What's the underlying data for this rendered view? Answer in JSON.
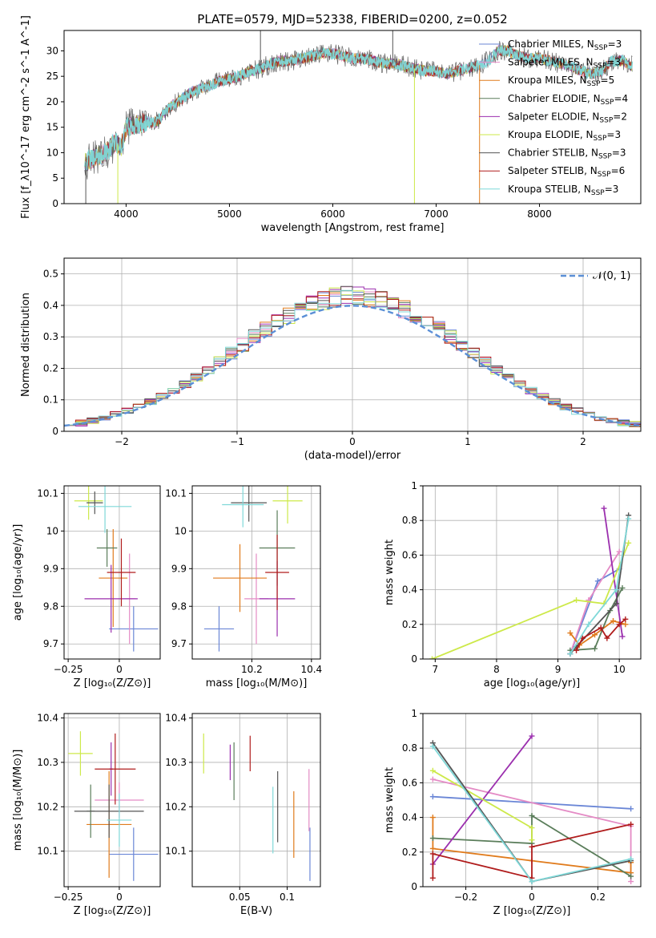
{
  "figure": {
    "title": "PLATE=0579, MJD=52338, FIBERID=0200, z=0.052"
  },
  "colors": {
    "chabrier_miles": "#6a86d6",
    "salpeter_miles": "#e48bc5",
    "kroupa_miles": "#e07b1c",
    "chabrier_elodie": "#5a7d5a",
    "salpeter_elodie": "#9b2fae",
    "kroupa_elodie": "#cde94a",
    "chabrier_stelib": "#555555",
    "salpeter_stelib": "#b01c1c",
    "kroupa_stelib": "#7fd8d8",
    "normal": "#5b8fd6",
    "grid": "#b0b0b0"
  },
  "chart_data": [
    {
      "id": "spectrum",
      "type": "line",
      "title": "PLATE=0579, MJD=52338, FIBERID=0200, z=0.052",
      "xlabel": "wavelength [Angstrom, rest frame]",
      "ylabel": "Flux [f_λ10^-17 erg cm^-2 s^-1 A^-1]",
      "xlim": [
        3400,
        8980
      ],
      "ylim": [
        0,
        34
      ],
      "xticks": [
        4000,
        5000,
        6000,
        7000,
        8000
      ],
      "yticks": [
        0,
        5,
        10,
        15,
        20,
        25,
        30
      ],
      "grid": false,
      "legend_position": "top-right",
      "continuum": {
        "x": [
          3600,
          3700,
          3800,
          3900,
          3950,
          4000,
          4100,
          4200,
          4300,
          4400,
          4500,
          4600,
          4700,
          4800,
          4900,
          5000,
          5100,
          5200,
          5300,
          5400,
          5500,
          5600,
          5700,
          5800,
          5900,
          6000,
          6100,
          6200,
          6300,
          6400,
          6500,
          6600,
          6700,
          6800,
          6900,
          7000,
          7100,
          7200,
          7300,
          7400,
          7500,
          7600,
          7700,
          7800,
          7900,
          8000,
          8100,
          8200,
          8300,
          8400,
          8500,
          8600,
          8700,
          8800,
          8900
        ],
        "y": [
          8,
          9,
          10,
          12,
          11,
          15,
          15.5,
          16,
          16,
          18.5,
          20,
          21.5,
          22.5,
          23,
          24,
          24.5,
          25,
          26,
          26.5,
          27.5,
          28,
          28,
          28.5,
          29,
          29.5,
          29.5,
          29,
          28.5,
          28.5,
          28,
          27.5,
          27.5,
          27,
          26.5,
          26,
          26,
          25.5,
          26,
          26.5,
          27,
          28,
          30,
          30,
          29,
          28.5,
          28.5,
          28,
          27.5,
          27,
          26,
          25.5,
          26,
          28,
          28,
          27
        ]
      },
      "series": [
        {
          "name": "Chabrier MILES, N_SSP=3",
          "label_main": "Chabrier MILES, N",
          "sub": "SSP",
          "label_tail": "=3",
          "color": "#6a86d6"
        },
        {
          "name": "Salpeter MILES, N_SSP=3",
          "label_main": "Salpeter MILES, N",
          "sub": "SSP",
          "label_tail": "=3",
          "color": "#e48bc5"
        },
        {
          "name": "Kroupa MILES, N_SSP=5",
          "label_main": "Kroupa MILES, N",
          "sub": "SSP",
          "label_tail": "=5",
          "color": "#e07b1c"
        },
        {
          "name": "Chabrier ELODIE, N_SSP=4",
          "label_main": "Chabrier ELODIE, N",
          "sub": "SSP",
          "label_tail": "=4",
          "color": "#5a7d5a"
        },
        {
          "name": "Salpeter ELODIE, N_SSP=2",
          "label_main": "Salpeter ELODIE, N",
          "sub": "SSP",
          "label_tail": "=2",
          "color": "#9b2fae"
        },
        {
          "name": "Kroupa ELODIE, N_SSP=3",
          "label_main": "Kroupa ELODIE, N",
          "sub": "SSP",
          "label_tail": "=3",
          "color": "#cde94a"
        },
        {
          "name": "Chabrier STELIB, N_SSP=3",
          "label_main": "Chabrier STELIB, N",
          "sub": "SSP",
          "label_tail": "=3",
          "color": "#555555"
        },
        {
          "name": "Salpeter STELIB, N_SSP=6",
          "label_main": "Salpeter STELIB, N",
          "sub": "SSP",
          "label_tail": "=6",
          "color": "#b01c1c"
        },
        {
          "name": "Kroupa STELIB, N_SSP=3",
          "label_main": "Kroupa STELIB, N",
          "sub": "SSP",
          "label_tail": "=3",
          "color": "#7fd8d8"
        }
      ]
    },
    {
      "id": "residuals",
      "type": "line",
      "xlabel": "(data-model)/error",
      "ylabel": "Normed distribution",
      "xlim": [
        -2.5,
        2.5
      ],
      "ylim": [
        0,
        0.55
      ],
      "xticks": [
        -2,
        -1,
        0,
        1,
        2
      ],
      "yticks": [
        0.0,
        0.1,
        0.2,
        0.3,
        0.4,
        0.5
      ],
      "grid": true,
      "legend_position": "top-right",
      "legend_label": "𝒩(0, 1)",
      "normal": {
        "mu": 0,
        "sigma": 1
      }
    },
    {
      "id": "age_vs_Z",
      "type": "scatter",
      "xlabel": "Z [log₁₀(Z/Z⊙)]",
      "ylabel": "age  [log₁₀(age/yr)]",
      "xlim": [
        -0.27,
        0.2
      ],
      "ylim": [
        9.66,
        10.12
      ],
      "xticks": [
        -0.25,
        0.0
      ],
      "yticks": [
        9.7,
        9.8,
        9.9,
        10.0,
        10.1
      ],
      "grid": true,
      "points": [
        {
          "color": "#6a86d6",
          "x": 0.07,
          "y": 9.74,
          "xerr": 0.12,
          "yerr": 0.06
        },
        {
          "color": "#e48bc5",
          "x": 0.05,
          "y": 9.82,
          "xerr": 0.03,
          "yerr": 0.12
        },
        {
          "color": "#e07b1c",
          "x": -0.03,
          "y": 9.875,
          "xerr": 0.07,
          "yerr": 0.13
        },
        {
          "color": "#5a7d5a",
          "x": -0.06,
          "y": 9.955,
          "xerr": 0.05,
          "yerr": 0.05
        },
        {
          "color": "#9b2fae",
          "x": -0.04,
          "y": 9.82,
          "xerr": 0.13,
          "yerr": 0.09
        },
        {
          "color": "#cde94a",
          "x": -0.15,
          "y": 10.08,
          "xerr": 0.07,
          "yerr": 0.05
        },
        {
          "color": "#555555",
          "x": -0.12,
          "y": 10.075,
          "xerr": 0.04,
          "yerr": 0.03
        },
        {
          "color": "#b01c1c",
          "x": 0.01,
          "y": 9.89,
          "xerr": 0.07,
          "yerr": 0.09
        },
        {
          "color": "#7fd8d8",
          "x": -0.07,
          "y": 10.065,
          "xerr": 0.13,
          "yerr": 0.07
        }
      ]
    },
    {
      "id": "age_vs_mass",
      "type": "scatter",
      "xlabel": "mass [log₁₀(M/M⊙)]",
      "xlim": [
        10.0,
        10.43
      ],
      "ylim": [
        9.66,
        10.12
      ],
      "xticks": [
        10.2,
        10.4
      ],
      "yticks": [
        9.7,
        9.8,
        9.9,
        10.0,
        10.1
      ],
      "grid": true,
      "points": [
        {
          "color": "#6a86d6",
          "x": 10.09,
          "y": 9.74,
          "xerr": 0.05,
          "yerr": 0.06
        },
        {
          "color": "#e48bc5",
          "x": 10.215,
          "y": 9.82,
          "xerr": 0.04,
          "yerr": 0.12
        },
        {
          "color": "#e07b1c",
          "x": 10.16,
          "y": 9.875,
          "xerr": 0.09,
          "yerr": 0.09
        },
        {
          "color": "#5a7d5a",
          "x": 10.285,
          "y": 9.955,
          "xerr": 0.06,
          "yerr": 0.1
        },
        {
          "color": "#9b2fae",
          "x": 10.285,
          "y": 9.82,
          "xerr": 0.06,
          "yerr": 0.1
        },
        {
          "color": "#cde94a",
          "x": 10.32,
          "y": 10.08,
          "xerr": 0.05,
          "yerr": 0.06
        },
        {
          "color": "#555555",
          "x": 10.19,
          "y": 10.075,
          "xerr": 0.06,
          "yerr": 0.05
        },
        {
          "color": "#b01c1c",
          "x": 10.285,
          "y": 9.89,
          "xerr": 0.04,
          "yerr": 0.1
        },
        {
          "color": "#7fd8d8",
          "x": 10.17,
          "y": 10.07,
          "xerr": 0.07,
          "yerr": 0.06
        }
      ]
    },
    {
      "id": "weight_vs_age",
      "type": "line",
      "xlabel": "age  [log₁₀(age/yr)]",
      "ylabel": "mass weight",
      "xlim": [
        6.8,
        10.35
      ],
      "ylim": [
        0,
        1.0
      ],
      "xticks": [
        7,
        8,
        9,
        10
      ],
      "yticks": [
        0.0,
        0.2,
        0.4,
        0.6,
        0.8,
        1.0
      ],
      "grid": true,
      "series": [
        {
          "color": "#6a86d6",
          "x": [
            9.2,
            9.65,
            10.0
          ],
          "y": [
            0.03,
            0.45,
            0.52
          ]
        },
        {
          "color": "#e48bc5",
          "x": [
            9.2,
            9.5,
            10.0
          ],
          "y": [
            0.03,
            0.34,
            0.62
          ]
        },
        {
          "color": "#e07b1c",
          "x": [
            9.2,
            9.35,
            9.6,
            9.9,
            10.1
          ],
          "y": [
            0.15,
            0.08,
            0.14,
            0.22,
            0.2
          ]
        },
        {
          "color": "#5a7d5a",
          "x": [
            9.2,
            9.6,
            9.85,
            10.05
          ],
          "y": [
            0.05,
            0.06,
            0.28,
            0.41
          ]
        },
        {
          "color": "#9b2fae",
          "x": [
            9.75,
            10.05
          ],
          "y": [
            0.87,
            0.13
          ]
        },
        {
          "color": "#cde94a",
          "x": [
            6.95,
            9.3,
            9.75,
            10.15
          ],
          "y": [
            0.0,
            0.34,
            0.32,
            0.67
          ]
        },
        {
          "color": "#555555",
          "x": [
            9.2,
            9.3,
            9.95,
            10.15
          ],
          "y": [
            0.03,
            0.07,
            0.32,
            0.83
          ]
        },
        {
          "color": "#b01c1c",
          "x": [
            9.3,
            9.4,
            9.7,
            9.8,
            10.0,
            10.1
          ],
          "y": [
            0.05,
            0.12,
            0.18,
            0.12,
            0.2,
            0.23
          ]
        },
        {
          "color": "#7fd8d8",
          "x": [
            9.2,
            9.5,
            9.95,
            10.15
          ],
          "y": [
            0.03,
            0.2,
            0.4,
            0.81
          ]
        }
      ]
    },
    {
      "id": "mass_vs_Z",
      "type": "scatter",
      "xlabel": "Z [log₁₀(Z/Z⊙)]",
      "ylabel": "mass [log₁₀(M/M⊙)]",
      "xlim": [
        -0.27,
        0.2
      ],
      "ylim": [
        10.02,
        10.41
      ],
      "xticks": [
        -0.25,
        0.0
      ],
      "yticks": [
        10.1,
        10.2,
        10.3,
        10.4
      ],
      "grid": true,
      "points": [
        {
          "color": "#6a86d6",
          "x": 0.07,
          "y": 10.093,
          "xerr": 0.12,
          "yerr": 0.06
        },
        {
          "color": "#e48bc5",
          "x": 0.0,
          "y": 10.215,
          "xerr": 0.12,
          "yerr": 0.04
        },
        {
          "color": "#e07b1c",
          "x": -0.05,
          "y": 10.16,
          "xerr": 0.11,
          "yerr": 0.12
        },
        {
          "color": "#5a7d5a",
          "x": -0.14,
          "y": 10.19,
          "xerr": 0.02,
          "yerr": 0.06
        },
        {
          "color": "#9b2fae",
          "x": -0.04,
          "y": 10.285,
          "xerr": 0.01,
          "yerr": 0.06
        },
        {
          "color": "#cde94a",
          "x": -0.19,
          "y": 10.32,
          "xerr": 0.06,
          "yerr": 0.05
        },
        {
          "color": "#555555",
          "x": -0.05,
          "y": 10.19,
          "xerr": 0.17,
          "yerr": 0.06
        },
        {
          "color": "#b01c1c",
          "x": -0.02,
          "y": 10.285,
          "xerr": 0.1,
          "yerr": 0.08
        },
        {
          "color": "#7fd8d8",
          "x": 0.0,
          "y": 10.17,
          "xerr": 0.06,
          "yerr": 0.06
        }
      ]
    },
    {
      "id": "mass_vs_ebv",
      "type": "scatter",
      "xlabel": "E(B-V)",
      "xlim": [
        0.0,
        0.135
      ],
      "ylim": [
        10.02,
        10.41
      ],
      "xticks": [
        0.05,
        0.1
      ],
      "yticks": [
        10.1,
        10.2,
        10.3,
        10.4
      ],
      "grid": true,
      "points": [
        {
          "color": "#6a86d6",
          "x": 0.124,
          "y": 10.093,
          "xerr": 0.0,
          "yerr": 0.06
        },
        {
          "color": "#e48bc5",
          "x": 0.123,
          "y": 10.215,
          "xerr": 0.0,
          "yerr": 0.07
        },
        {
          "color": "#e07b1c",
          "x": 0.107,
          "y": 10.16,
          "xerr": 0.0,
          "yerr": 0.075
        },
        {
          "color": "#5a7d5a",
          "x": 0.044,
          "y": 10.28,
          "xerr": 0.0,
          "yerr": 0.065
        },
        {
          "color": "#9b2fae",
          "x": 0.04,
          "y": 10.3,
          "xerr": 0.0,
          "yerr": 0.04
        },
        {
          "color": "#cde94a",
          "x": 0.012,
          "y": 10.32,
          "xerr": 0.0,
          "yerr": 0.045
        },
        {
          "color": "#555555",
          "x": 0.09,
          "y": 10.2,
          "xerr": 0.0,
          "yerr": 0.08
        },
        {
          "color": "#b01c1c",
          "x": 0.061,
          "y": 10.32,
          "xerr": 0.0,
          "yerr": 0.04
        },
        {
          "color": "#7fd8d8",
          "x": 0.085,
          "y": 10.17,
          "xerr": 0.0,
          "yerr": 0.075
        }
      ]
    },
    {
      "id": "weight_vs_Z",
      "type": "line",
      "xlabel": "Z [log₁₀(Z/Z⊙)]",
      "ylabel": "mass weight",
      "xlim": [
        -0.33,
        0.33
      ],
      "ylim": [
        0,
        1.0
      ],
      "xticks": [
        -0.2,
        0.0,
        0.2
      ],
      "yticks": [
        0.0,
        0.2,
        0.4,
        0.6,
        0.8,
        1.0
      ],
      "grid": true,
      "series": [
        {
          "color": "#6a86d6",
          "x": [
            -0.3,
            0.3
          ],
          "y": [
            0.52,
            0.45
          ]
        },
        {
          "color": "#e48bc5",
          "x": [
            -0.3,
            0.3,
            0.3
          ],
          "y": [
            0.62,
            0.35,
            0.03
          ]
        },
        {
          "color": "#e07b1c",
          "x": [
            -0.3,
            -0.3,
            0.0,
            0.3,
            0.3
          ],
          "y": [
            0.4,
            0.22,
            0.15,
            0.08,
            0.14
          ]
        },
        {
          "color": "#5a7d5a",
          "x": [
            -0.3,
            0.0,
            0.0,
            0.3
          ],
          "y": [
            0.28,
            0.25,
            0.41,
            0.06
          ]
        },
        {
          "color": "#9b2fae",
          "x": [
            -0.3,
            0.0
          ],
          "y": [
            0.13,
            0.87
          ]
        },
        {
          "color": "#cde94a",
          "x": [
            -0.3,
            0.0,
            0.0
          ],
          "y": [
            0.67,
            0.34,
            0.27
          ]
        },
        {
          "color": "#555555",
          "x": [
            -0.3,
            0.0,
            0.3
          ],
          "y": [
            0.83,
            0.03,
            0.15
          ]
        },
        {
          "color": "#b01c1c",
          "x": [
            -0.3,
            -0.3,
            0.0,
            0.0,
            0.3
          ],
          "y": [
            0.05,
            0.19,
            0.05,
            0.23,
            0.36
          ]
        },
        {
          "color": "#7fd8d8",
          "x": [
            -0.3,
            0.0,
            0.3
          ],
          "y": [
            0.81,
            0.03,
            0.16
          ]
        }
      ]
    }
  ]
}
